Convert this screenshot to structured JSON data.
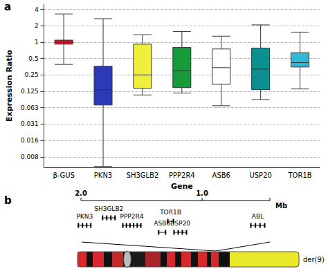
{
  "chart_data": {
    "type": "boxplot",
    "annotations": [
      "a"
    ],
    "x_label": "Gene",
    "y_label": "Expression Ratio",
    "categories": [
      "β-GUS",
      "PKN3",
      "SH3GLB2",
      "PPP2R4",
      "ASB6",
      "USP20",
      "TOR1B"
    ],
    "values": [
      [
        0.39,
        0.92,
        1.0,
        1.09,
        3.3
      ],
      [
        0.0052,
        0.07,
        0.134,
        0.36,
        2.7
      ],
      [
        0.107,
        0.142,
        0.25,
        0.92,
        1.37
      ],
      [
        0.116,
        0.146,
        0.3,
        0.8,
        1.57
      ],
      [
        0.068,
        0.168,
        0.34,
        0.75,
        1.29
      ],
      [
        0.088,
        0.134,
        0.32,
        0.78,
        2.08
      ],
      [
        0.138,
        0.35,
        0.42,
        0.64,
        1.53
      ]
    ],
    "colors": [
      "#e8102a",
      "#2b3bb8",
      "#f0ef3a",
      "#169a3a",
      "#ffffff",
      "#0e8f8f",
      "#30b8d8"
    ],
    "log": "y",
    "ylim": [
      0.005,
      5
    ],
    "yticks": [
      {
        "value": 0.0078125,
        "label": "0.008"
      },
      {
        "value": 0.015625,
        "label": "0.016"
      },
      {
        "value": 0.03125,
        "label": "0.031"
      },
      {
        "value": 0.0625,
        "label": "0.063"
      },
      0.125,
      0.25,
      0.5,
      1,
      2,
      4
    ],
    "grid": true
  },
  "diagram": {
    "label": "b",
    "scale": {
      "range": [
        2,
        0.44
      ],
      "ticks": [
        {
          "value": 2,
          "label": "2.0"
        },
        {
          "value": 1,
          "label": "1.0"
        }
      ],
      "unit": "Mb"
    },
    "genes": [
      {
        "name": "PKN3",
        "position": 1.97
      },
      {
        "name": "SH3GLB2",
        "position": 1.77
      },
      {
        "name": "PPP2R4",
        "position": 1.58
      },
      {
        "name": "ASB6",
        "position": 1.33
      },
      {
        "name": "TOR1B",
        "position": 1.26
      },
      {
        "name": "USP20",
        "position": 1.18
      },
      {
        "name": "ABL",
        "position": 0.54
      }
    ],
    "chromosome": "der(9)"
  }
}
